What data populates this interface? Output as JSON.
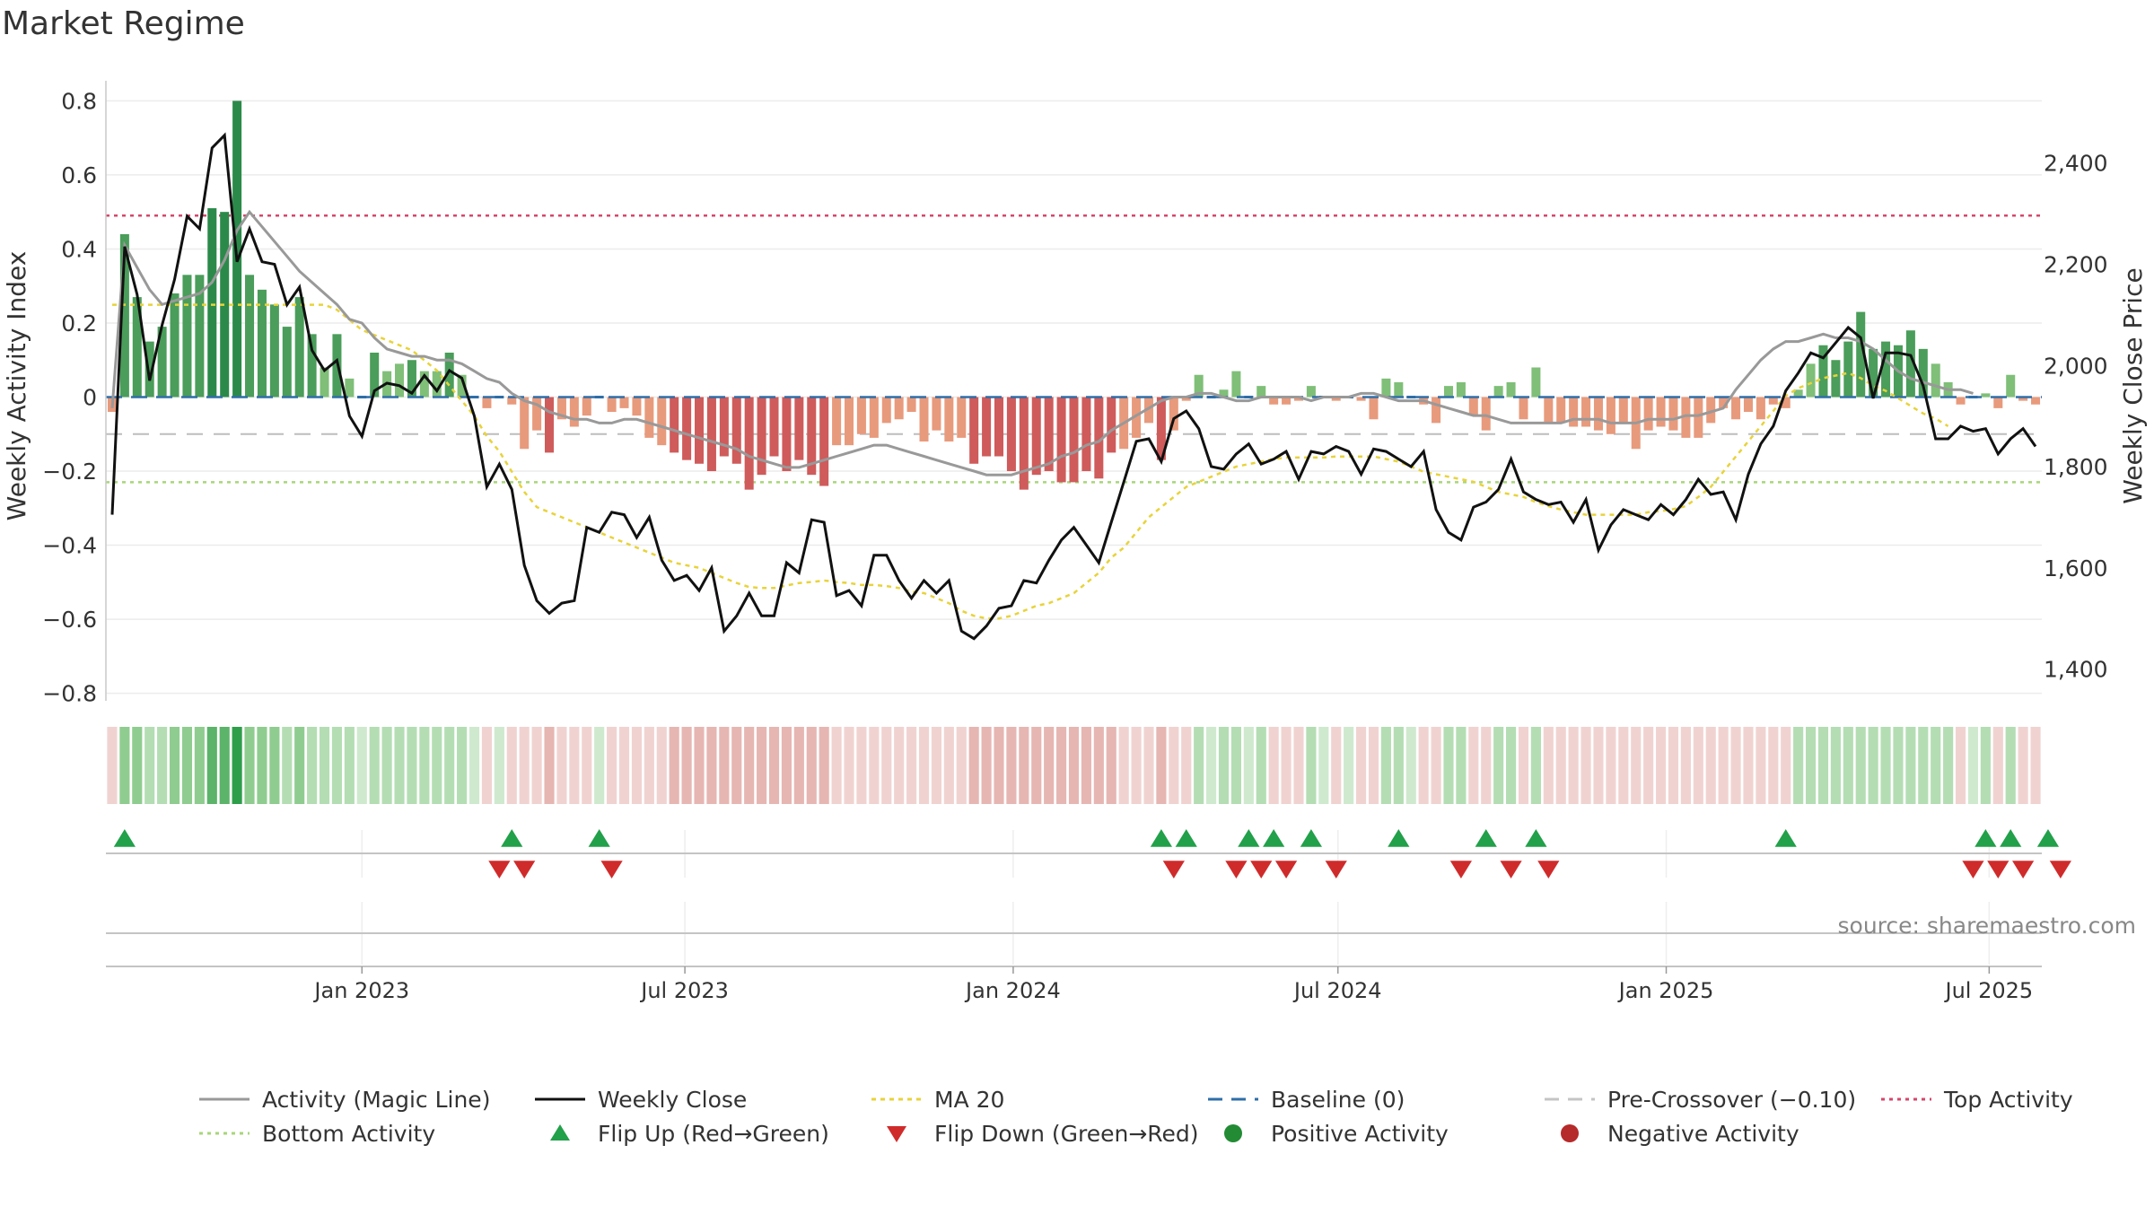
{
  "chart_data": {
    "type": "bar",
    "title": "Market Regime",
    "ylabel": "Weekly Activity Index",
    "y2label": "Weekly Close Price",
    "source": "source: sharemaestro.com",
    "ylim": [
      -0.83,
      0.83
    ],
    "y2lim": [
      1330,
      2545
    ],
    "yticks": [
      0.8,
      0.6,
      0.4,
      0.2,
      0,
      -0.2,
      -0.4,
      -0.6,
      -0.8
    ],
    "ytick_labels": [
      "0.8",
      "0.6",
      "0.4",
      "0.2",
      "0",
      "−0.2",
      "−0.4",
      "−0.6",
      "−0.8"
    ],
    "y2ticks": [
      2400,
      2200,
      2000,
      1800,
      1600,
      1400
    ],
    "y2tick_labels": [
      "2,400",
      "2,200",
      "2,000",
      "1,800",
      "1,600",
      "1,400"
    ],
    "xlim": [
      "2022-08-14",
      "2025-09-07"
    ],
    "xticks": [
      "2023-01-01",
      "2023-07-01",
      "2024-01-01",
      "2024-07-01",
      "2025-01-01",
      "2025-07-01"
    ],
    "xtick_labels": [
      "Jan 2023",
      "Jul 2023",
      "Jan 2024",
      "Jul 2024",
      "Jan 2025",
      "Jul 2025"
    ],
    "start_date": "2022-08-14",
    "reference_lines": {
      "top_activity": 0.49,
      "bottom_activity": -0.23,
      "pre_crossover": -0.1,
      "baseline": 0
    },
    "series": [
      {
        "name": "Activity (Magic Line)",
        "values": [
          -0.03,
          0.41,
          0.35,
          0.29,
          0.25,
          0.26,
          0.27,
          0.28,
          0.31,
          0.37,
          0.45,
          0.5,
          0.46,
          0.42,
          0.38,
          0.34,
          0.31,
          0.28,
          0.25,
          0.21,
          0.2,
          0.16,
          0.13,
          0.12,
          0.11,
          0.11,
          0.1,
          0.1,
          0.09,
          0.07,
          0.05,
          0.04,
          0.01,
          -0.01,
          -0.02,
          -0.04,
          -0.05,
          -0.06,
          -0.06,
          -0.07,
          -0.07,
          -0.06,
          -0.06,
          -0.07,
          -0.08,
          -0.09,
          -0.1,
          -0.11,
          -0.12,
          -0.13,
          -0.14,
          -0.16,
          -0.17,
          -0.18,
          -0.19,
          -0.19,
          -0.18,
          -0.17,
          -0.16,
          -0.15,
          -0.14,
          -0.13,
          -0.13,
          -0.14,
          -0.15,
          -0.16,
          -0.17,
          -0.18,
          -0.19,
          -0.2,
          -0.21,
          -0.21,
          -0.21,
          -0.2,
          -0.19,
          -0.18,
          -0.16,
          -0.15,
          -0.13,
          -0.12,
          -0.09,
          -0.07,
          -0.05,
          -0.03,
          -0.01,
          -0.0,
          0.0,
          0.01,
          0.01,
          0.0,
          -0.01,
          -0.01,
          -0.0,
          0.0,
          0.0,
          -0.0,
          -0.01,
          0.0,
          0.0,
          0.0,
          0.01,
          0.01,
          0.0,
          -0.01,
          -0.01,
          -0.01,
          -0.02,
          -0.03,
          -0.04,
          -0.05,
          -0.05,
          -0.06,
          -0.07,
          -0.07,
          -0.07,
          -0.07,
          -0.07,
          -0.06,
          -0.06,
          -0.06,
          -0.07,
          -0.07,
          -0.07,
          -0.06,
          -0.06,
          -0.06,
          -0.05,
          -0.05,
          -0.04,
          -0.03,
          0.02,
          0.06,
          0.1,
          0.13,
          0.15,
          0.15,
          0.16,
          0.17,
          0.16,
          0.16,
          0.15,
          0.13,
          0.1,
          0.07,
          0.05,
          0.04,
          0.03,
          0.02,
          0.02,
          0.01
        ]
      },
      {
        "name": "Weekly Close",
        "values": [
          1705,
          2235,
          2140,
          1970,
          2080,
          2170,
          2295,
          2270,
          2430,
          2455,
          2205,
          2270,
          2205,
          2200,
          2120,
          2155,
          2030,
          1990,
          2010,
          1900,
          1860,
          1950,
          1965,
          1960,
          1945,
          1980,
          1950,
          1990,
          1975,
          1900,
          1760,
          1805,
          1755,
          1605,
          1535,
          1510,
          1530,
          1535,
          1680,
          1670,
          1710,
          1705,
          1660,
          1700,
          1615,
          1575,
          1585,
          1555,
          1600,
          1475,
          1505,
          1550,
          1505,
          1505,
          1610,
          1590,
          1695,
          1690,
          1545,
          1555,
          1525,
          1625,
          1625,
          1575,
          1540,
          1575,
          1550,
          1575,
          1475,
          1460,
          1485,
          1520,
          1525,
          1575,
          1570,
          1615,
          1655,
          1680,
          1645,
          1610,
          1690,
          1770,
          1850,
          1855,
          1810,
          1895,
          1910,
          1875,
          1800,
          1795,
          1825,
          1845,
          1805,
          1815,
          1830,
          1775,
          1830,
          1825,
          1840,
          1830,
          1785,
          1835,
          1830,
          1815,
          1800,
          1830,
          1715,
          1670,
          1655,
          1720,
          1730,
          1755,
          1815,
          1750,
          1735,
          1725,
          1730,
          1690,
          1735,
          1635,
          1685,
          1715,
          1705,
          1695,
          1725,
          1705,
          1735,
          1775,
          1745,
          1750,
          1695,
          1785,
          1845,
          1880,
          1950,
          1985,
          2025,
          2015,
          2045,
          2075,
          2055,
          1935,
          2025,
          2025,
          2020,
          1960,
          1855,
          1855,
          1880,
          1870,
          1875,
          1825,
          1855,
          1875,
          1840
        ]
      },
      {
        "name": "MA 20",
        "values": [
          2120,
          2120,
          2120,
          2120,
          2120,
          2120,
          2120,
          2120,
          2120,
          2120,
          2120,
          2120,
          2120,
          2120,
          2120,
          2120,
          2120,
          2120,
          2110,
          2090,
          2070,
          2060,
          2050,
          2040,
          2030,
          2010,
          1990,
          1960,
          1930,
          1900,
          1860,
          1830,
          1790,
          1750,
          1720,
          1710,
          1700,
          1690,
          1680,
          1670,
          1660,
          1650,
          1640,
          1630,
          1620,
          1610,
          1605,
          1600,
          1590,
          1580,
          1570,
          1562,
          1560,
          1560,
          1565,
          1570,
          1572,
          1575,
          1572,
          1570,
          1566,
          1566,
          1564,
          1560,
          1553,
          1550,
          1540,
          1530,
          1515,
          1505,
          1500,
          1500,
          1505,
          1515,
          1525,
          1530,
          1540,
          1550,
          1570,
          1590,
          1620,
          1640,
          1670,
          1700,
          1720,
          1740,
          1760,
          1770,
          1780,
          1790,
          1800,
          1805,
          1810,
          1815,
          1818,
          1818,
          1818,
          1818,
          1820,
          1820,
          1820,
          1820,
          1815,
          1810,
          1800,
          1790,
          1785,
          1780,
          1775,
          1770,
          1760,
          1750,
          1745,
          1740,
          1730,
          1722,
          1715,
          1710,
          1705,
          1705,
          1705,
          1705,
          1705,
          1710,
          1712,
          1716,
          1722,
          1740,
          1760,
          1790,
          1820,
          1850,
          1880,
          1910,
          1940,
          1955,
          1965,
          1975,
          1980,
          1985,
          1975,
          1960,
          1950,
          1935,
          1920,
          1905,
          1895,
          1880
        ]
      },
      {
        "name": "Baseline (0)",
        "values": []
      },
      {
        "name": "Pre-Crossover (−0.10)",
        "values": []
      },
      {
        "name": "Top Activity",
        "values": []
      },
      {
        "name": "Bottom Activity",
        "values": []
      },
      {
        "name": "Flip Up (Red→Green)",
        "values": [
          1,
          32,
          39,
          84,
          86,
          91,
          93,
          96,
          103,
          110,
          114,
          134,
          150,
          152,
          155
        ]
      },
      {
        "name": "Flip Down (Green→Red)",
        "values": [
          31,
          33,
          40,
          85,
          90,
          92,
          94,
          98,
          108,
          112,
          115,
          149,
          151,
          153,
          156
        ]
      },
      {
        "name": "Positive Activity",
        "values": []
      },
      {
        "name": "Negative Activity",
        "values": []
      }
    ],
    "activity_bars": [
      -0.04,
      0.44,
      0.27,
      0.15,
      0.19,
      0.28,
      0.33,
      0.33,
      0.51,
      0.5,
      0.8,
      0.33,
      0.29,
      0.25,
      0.19,
      0.27,
      0.17,
      0.08,
      0.17,
      0.05,
      0.0,
      0.12,
      0.07,
      0.09,
      0.1,
      0.07,
      0.07,
      0.12,
      0.06,
      0.0,
      -0.03,
      0.0,
      -0.02,
      -0.14,
      -0.09,
      -0.15,
      -0.06,
      -0.08,
      -0.05,
      0.0,
      -0.04,
      -0.03,
      -0.05,
      -0.11,
      -0.13,
      -0.15,
      -0.17,
      -0.18,
      -0.2,
      -0.16,
      -0.18,
      -0.25,
      -0.21,
      -0.16,
      -0.2,
      -0.17,
      -0.21,
      -0.24,
      -0.13,
      -0.13,
      -0.1,
      -0.11,
      -0.07,
      -0.06,
      -0.04,
      -0.12,
      -0.09,
      -0.12,
      -0.11,
      -0.18,
      -0.16,
      -0.16,
      -0.2,
      -0.25,
      -0.21,
      -0.2,
      -0.23,
      -0.23,
      -0.2,
      -0.22,
      -0.15,
      -0.14,
      -0.11,
      -0.07,
      -0.17,
      -0.09,
      -0.01,
      0.06,
      0.0,
      0.02,
      0.07,
      0.0,
      0.03,
      -0.02,
      -0.02,
      -0.01,
      0.03,
      0.0,
      -0.01,
      0.0,
      -0.01,
      -0.06,
      0.05,
      0.04,
      0.0,
      -0.02,
      -0.07,
      0.03,
      0.04,
      -0.05,
      -0.09,
      0.03,
      0.04,
      -0.06,
      0.08,
      -0.07,
      -0.07,
      -0.08,
      -0.08,
      -0.09,
      -0.1,
      -0.07,
      -0.14,
      -0.09,
      -0.08,
      -0.09,
      -0.11,
      -0.11,
      -0.07,
      -0.03,
      -0.06,
      -0.04,
      -0.06,
      -0.02,
      -0.03,
      0.02,
      0.09,
      0.14,
      0.1,
      0.15,
      0.23,
      0.13,
      0.15,
      0.14,
      0.18,
      0.13,
      0.09,
      0.04,
      -0.02,
      0.0,
      0.01,
      -0.03,
      0.06,
      -0.01,
      -0.02
    ]
  }
}
